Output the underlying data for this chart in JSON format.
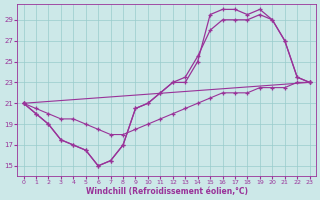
{
  "xlabel": "Windchill (Refroidissement éolien,°C)",
  "bg_color": "#cce8e8",
  "grid_color": "#99cccc",
  "line_color": "#993399",
  "xlim": [
    -0.5,
    23.5
  ],
  "ylim": [
    14,
    30.5
  ],
  "xticks": [
    0,
    1,
    2,
    3,
    4,
    5,
    6,
    7,
    8,
    9,
    10,
    11,
    12,
    13,
    14,
    15,
    16,
    17,
    18,
    19,
    20,
    21,
    22,
    23
  ],
  "yticks": [
    15,
    17,
    19,
    21,
    23,
    25,
    27,
    29
  ],
  "series1_x": [
    0,
    1,
    2,
    3,
    4,
    5,
    6,
    7,
    8,
    9,
    10,
    11,
    12,
    13,
    14,
    15,
    16,
    17,
    18,
    19,
    20,
    21,
    22,
    23
  ],
  "series1_y": [
    21,
    20,
    19,
    17.5,
    17,
    16.5,
    15,
    15.5,
    17,
    20.5,
    21,
    22,
    23,
    23,
    25,
    29.5,
    30,
    30,
    29.5,
    30,
    29,
    27,
    23.5,
    23
  ],
  "series2_x": [
    0,
    1,
    2,
    3,
    4,
    5,
    6,
    7,
    8,
    9,
    10,
    11,
    12,
    13,
    14,
    15,
    16,
    17,
    18,
    19,
    20,
    21,
    22,
    23
  ],
  "series2_y": [
    21,
    20,
    19,
    17.5,
    17,
    16.5,
    15,
    15.5,
    17,
    20.5,
    21,
    22,
    23,
    23.5,
    25.5,
    28,
    29,
    29,
    29,
    29.5,
    29,
    27,
    23.5,
    23
  ],
  "series3_x": [
    0,
    1,
    2,
    3,
    4,
    5,
    6,
    7,
    8,
    9,
    10,
    11,
    12,
    13,
    14,
    15,
    16,
    17,
    18,
    19,
    20,
    21,
    22,
    23
  ],
  "series3_y": [
    21,
    20.5,
    20,
    19.5,
    19.5,
    19,
    18.5,
    18,
    18,
    18.5,
    19,
    19.5,
    20,
    20.5,
    21,
    21.5,
    22,
    22,
    22,
    22.5,
    22.5,
    22.5,
    23,
    23
  ],
  "series4_x": [
    0,
    23
  ],
  "series4_y": [
    21,
    23
  ]
}
